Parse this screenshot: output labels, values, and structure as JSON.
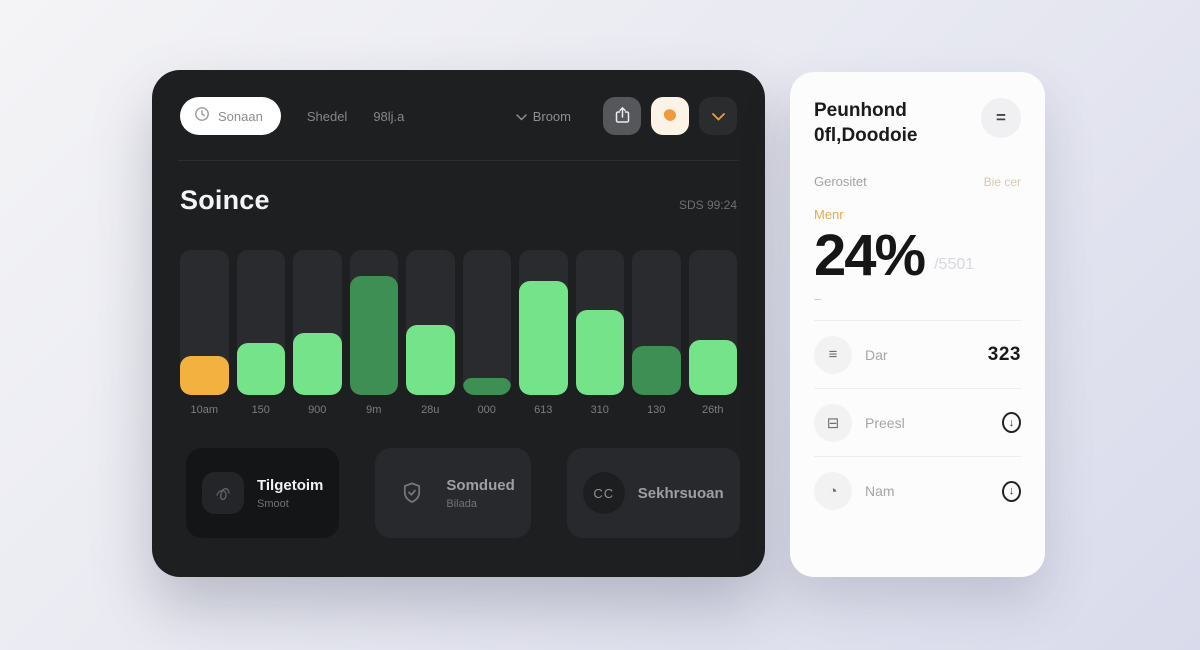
{
  "dashboard": {
    "search": {
      "label": "Sonaan"
    },
    "nav": [
      {
        "label": "Shedel"
      },
      {
        "label": "98lj.a"
      }
    ],
    "dropdown_label": "Broom",
    "title": "Soince",
    "meta": "SDS 99:24",
    "chart_data": {
      "type": "bar",
      "categories": [
        "10am",
        "150",
        "900",
        "9m",
        "28u",
        "000",
        "613",
        "310",
        "130",
        "26th"
      ],
      "values": [
        39,
        52,
        62,
        119,
        70,
        17,
        114,
        85,
        49,
        55
      ],
      "colors": [
        "orange",
        "green",
        "green",
        "dark_green",
        "green",
        "dark_green",
        "green",
        "green",
        "dark_green",
        "green"
      ],
      "palette": {
        "orange": "#f3b13f",
        "green": "#74e389",
        "dark_green": "#3e8f54",
        "track": "#292b2e"
      },
      "title": "Soince",
      "xlabel": "",
      "ylabel": "",
      "ylim": [
        0,
        145
      ],
      "grid": false,
      "legend": false
    },
    "cards": [
      {
        "title": "Tilgetoim",
        "subtitle": "Smoot"
      },
      {
        "title": "Somdued",
        "subtitle": "Bilada"
      },
      {
        "title": "Sekhrsuoan",
        "badge": "CC"
      }
    ]
  },
  "panel": {
    "title_line1": "Peunhond",
    "title_line2": "0fl,Doodoie",
    "menu_glyph": "=",
    "stat_label": "Gerositet",
    "stat_value": "Bie cer",
    "metric_label": "Menr",
    "metric_value": "24%",
    "metric_total": "/5501",
    "dash": "–",
    "arrow_glyph": "↓",
    "rows": [
      {
        "icon_glyph": "≡",
        "label": "Dar",
        "value": "323"
      },
      {
        "icon_glyph": "⊟",
        "label": "Preesl",
        "value": ""
      },
      {
        "icon_glyph": "◔",
        "label": "Nam",
        "value": ""
      }
    ]
  },
  "colors": {
    "accent_orange": "#f3b13f",
    "green": "#74e389",
    "dark_green": "#3e8f54",
    "dark_card_bg": "#1d1f21",
    "panel_bg": "#fcfcfd"
  }
}
